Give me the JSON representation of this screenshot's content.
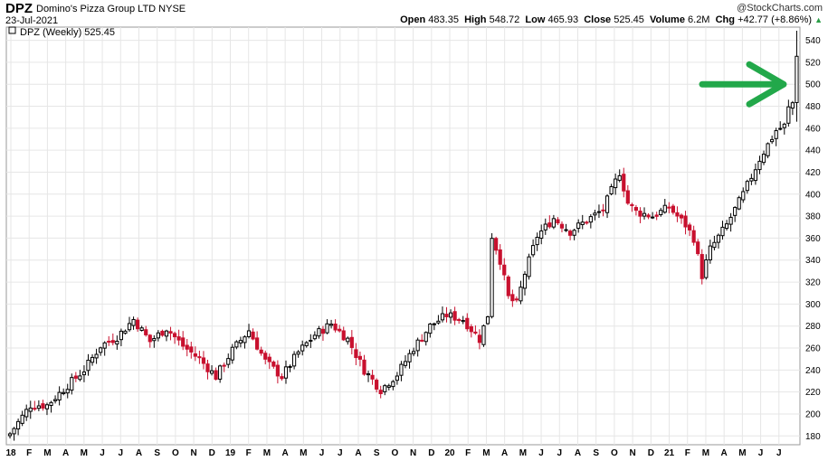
{
  "header": {
    "symbol": "DPZ",
    "company": "Domino's Pizza Group LTD",
    "exchange": "NYSE",
    "date": "23-Jul-2021",
    "copyright": "@StockCharts.com",
    "open_label": "Open",
    "open": "483.35",
    "high_label": "High",
    "high": "548.72",
    "low_label": "Low",
    "low": "465.93",
    "close_label": "Close",
    "close": "525.45",
    "volume_label": "Volume",
    "volume": "6.2M",
    "chg_label": "Chg",
    "chg": "+42.77 (+8.86%)"
  },
  "colors": {
    "up": "#000000",
    "down": "#c8102e",
    "arrow": "#22a84a",
    "grid": "#e6e6e6"
  },
  "chart_data": {
    "type": "candlestick",
    "legend": "DPZ (Weekly) 525.45",
    "legend_position": "top-left",
    "y_axis_side": "right",
    "ylim": [
      172,
      552
    ],
    "yticks": [
      180,
      200,
      220,
      240,
      260,
      280,
      300,
      320,
      340,
      360,
      380,
      400,
      420,
      440,
      460,
      480,
      500,
      520,
      540
    ],
    "grid": true,
    "x_tick_labels": [
      "18",
      "F",
      "M",
      "A",
      "M",
      "J",
      "J",
      "A",
      "S",
      "O",
      "N",
      "D",
      "19",
      "F",
      "M",
      "A",
      "M",
      "J",
      "J",
      "A",
      "S",
      "O",
      "N",
      "D",
      "20",
      "F",
      "M",
      "A",
      "M",
      "J",
      "J",
      "A",
      "S",
      "O",
      "N",
      "D",
      "21",
      "F",
      "M",
      "A",
      "M",
      "J",
      "J"
    ],
    "annotation": {
      "type": "arrow",
      "color": "#22a84a",
      "points_to_y": 500
    },
    "anchors": [
      [
        0,
        182
      ],
      [
        5,
        208
      ],
      [
        9,
        208
      ],
      [
        14,
        226
      ],
      [
        18,
        240
      ],
      [
        22,
        262
      ],
      [
        26,
        270
      ],
      [
        30,
        286
      ],
      [
        34,
        266
      ],
      [
        38,
        278
      ],
      [
        42,
        262
      ],
      [
        46,
        250
      ],
      [
        50,
        234
      ],
      [
        54,
        258
      ],
      [
        58,
        276
      ],
      [
        62,
        248
      ],
      [
        66,
        234
      ],
      [
        70,
        256
      ],
      [
        74,
        272
      ],
      [
        78,
        282
      ],
      [
        82,
        268
      ],
      [
        86,
        240
      ],
      [
        90,
        222
      ],
      [
        94,
        236
      ],
      [
        98,
        260
      ],
      [
        102,
        280
      ],
      [
        106,
        290
      ],
      [
        110,
        286
      ],
      [
        114,
        268
      ],
      [
        116,
        290
      ],
      [
        117,
        362
      ],
      [
        119,
        340
      ],
      [
        121,
        306
      ],
      [
        123,
        300
      ],
      [
        125,
        328
      ],
      [
        128,
        362
      ],
      [
        132,
        378
      ],
      [
        136,
        366
      ],
      [
        140,
        376
      ],
      [
        144,
        386
      ],
      [
        148,
        420
      ],
      [
        150,
        392
      ],
      [
        152,
        384
      ],
      [
        156,
        380
      ],
      [
        160,
        388
      ],
      [
        164,
        372
      ],
      [
        166,
        360
      ],
      [
        168,
        326
      ],
      [
        170,
        350
      ],
      [
        174,
        372
      ],
      [
        178,
        400
      ],
      [
        182,
        432
      ],
      [
        186,
        458
      ],
      [
        188,
        462
      ],
      [
        189,
        478
      ],
      [
        190,
        483
      ],
      [
        191,
        525
      ]
    ]
  }
}
